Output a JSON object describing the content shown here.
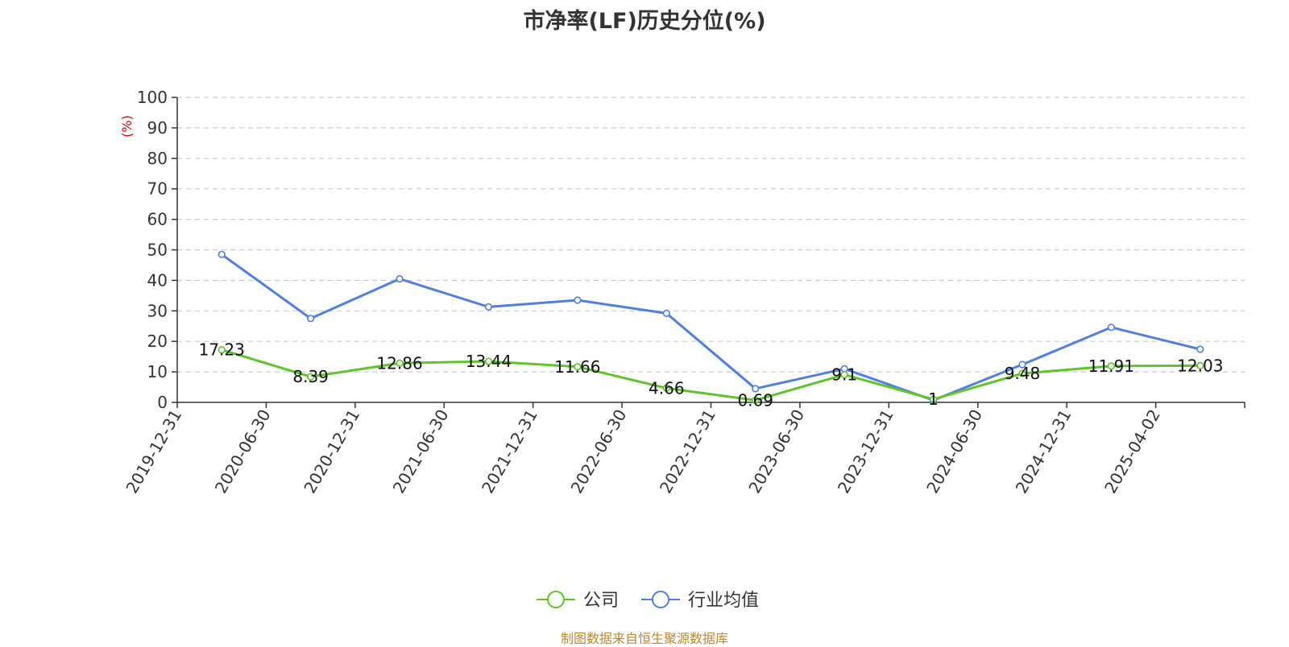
{
  "source_note": "制图数据来自恒生聚源数据库",
  "chart_data": {
    "type": "line",
    "title": "市净率(LF)历史分位(%)",
    "ylabel": "(%)",
    "xlabel": "",
    "ylim": [
      0,
      100
    ],
    "yticks": [
      0,
      10,
      20,
      30,
      40,
      50,
      60,
      70,
      80,
      90,
      100
    ],
    "grid": true,
    "legend_position": "bottom-center",
    "categories": [
      "2019-12-31",
      "2020-06-30",
      "2020-12-31",
      "2021-06-30",
      "2021-12-31",
      "2022-06-30",
      "2022-12-31",
      "2023-06-30",
      "2023-12-31",
      "2024-06-30",
      "2024-12-31",
      "2025-04-02"
    ],
    "series": [
      {
        "name": "公司",
        "color": "#5ec529",
        "values": [
          17.23,
          8.39,
          12.86,
          13.44,
          11.66,
          4.66,
          0.69,
          9.1,
          1,
          9.48,
          11.91,
          12.03
        ],
        "labels": [
          "17.23",
          "8.39",
          "12.86",
          "13.44",
          "11.66",
          "4.66",
          "0.69",
          "9.1",
          "1",
          "9.48",
          "11.91",
          "12.03"
        ],
        "show_labels": true
      },
      {
        "name": "行业均值",
        "color": "#4e80dc",
        "values": [
          48.5,
          27.5,
          40.5,
          31.3,
          33.5,
          29.2,
          4.5,
          11.0,
          0.7,
          12.4,
          24.6,
          17.4
        ],
        "show_labels": false
      }
    ]
  }
}
